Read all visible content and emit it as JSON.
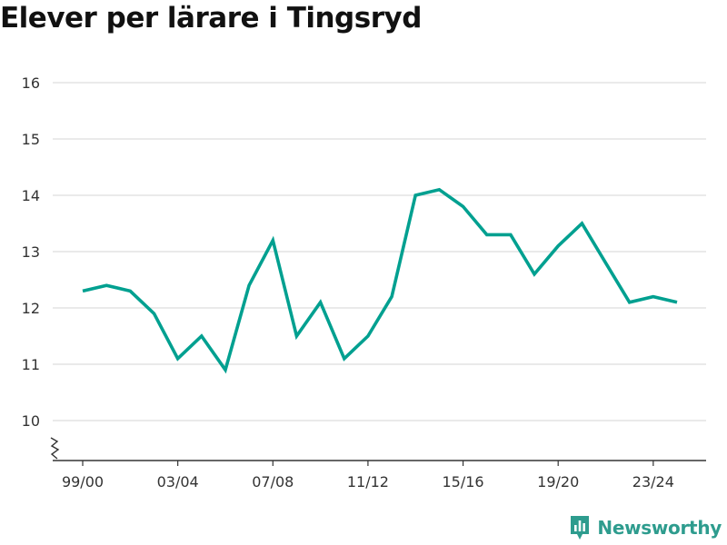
{
  "title": "Elever per lärare i Tingsryd",
  "brand": {
    "name": "Newsworthy",
    "icon": "bar-chart-logo-icon",
    "color": "#2e9c8e"
  },
  "colors": {
    "line": "#00a090",
    "grid": "#dddddd",
    "axis": "#333333"
  },
  "chart_data": {
    "type": "line",
    "title": "Elever per lärare i Tingsryd",
    "xlabel": "",
    "ylabel": "",
    "ylim": [
      10,
      16
    ],
    "y_axis_break": true,
    "yticks": [
      10,
      11,
      12,
      13,
      14,
      15,
      16
    ],
    "grid": true,
    "x": [
      "99/00",
      "00/01",
      "01/02",
      "02/03",
      "03/04",
      "04/05",
      "05/06",
      "06/07",
      "07/08",
      "08/09",
      "09/10",
      "10/11",
      "11/12",
      "12/13",
      "13/14",
      "14/15",
      "15/16",
      "16/17",
      "17/18",
      "18/19",
      "19/20",
      "20/21",
      "21/22",
      "22/23",
      "23/24",
      "24/25"
    ],
    "xticks": [
      "99/00",
      "03/04",
      "07/08",
      "11/12",
      "15/16",
      "19/20",
      "23/24"
    ],
    "series": [
      {
        "values": [
          12.3,
          12.4,
          12.3,
          11.9,
          11.1,
          11.5,
          10.9,
          12.4,
          13.2,
          11.5,
          12.1,
          11.1,
          11.5,
          12.2,
          14.0,
          14.1,
          13.8,
          13.3,
          13.3,
          12.6,
          13.1,
          13.5,
          12.8,
          12.1,
          12.2,
          12.1
        ]
      }
    ]
  }
}
